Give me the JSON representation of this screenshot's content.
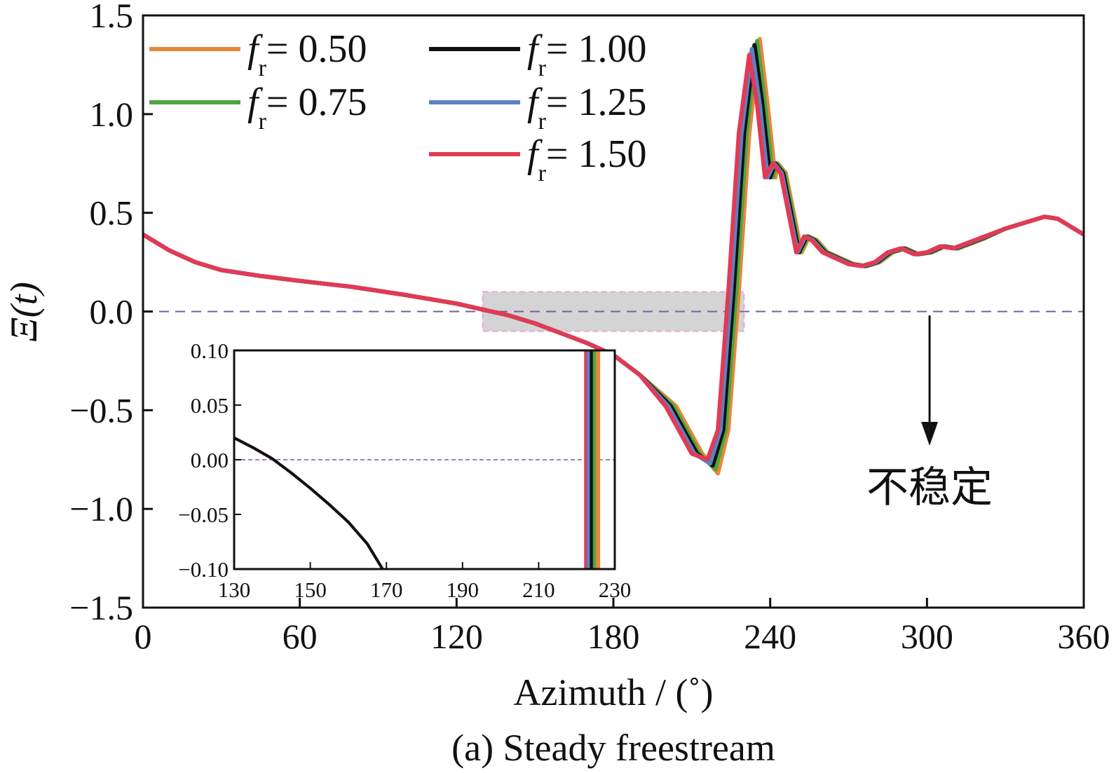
{
  "chart_data": {
    "type": "line",
    "caption": "(a) Steady freestream",
    "xlabel": "Azimuth / (˚)",
    "ylabel": "Ξ(t)",
    "xlim": [
      0,
      360
    ],
    "ylim": [
      -1.5,
      1.5
    ],
    "xticks": [
      "0",
      "60",
      "120",
      "180",
      "240",
      "300",
      "360"
    ],
    "yticks": [
      "1.5",
      "1.0",
      "0.5",
      "0.0",
      "−0.5",
      "−1.0",
      "−1.5"
    ],
    "grid": false,
    "legend_position": "top-left",
    "reference_line": {
      "y": 0.0,
      "style": "dashed",
      "color": "#7a5c9e"
    },
    "annotation": {
      "text": "不稳定",
      "x": 301,
      "arrow_from_y": -0.02,
      "arrow_to_y": -0.68
    },
    "highlight_box": {
      "x": [
        130,
        230
      ],
      "y": [
        -0.1,
        0.1
      ]
    },
    "series": [
      {
        "name": "fr = 0.50",
        "legend_label": {
          "var": "f",
          "sub": "r",
          "value": "= 0.50"
        },
        "color": "#e8873a",
        "shift": 4.0,
        "x": [
          0,
          10,
          20,
          30,
          45,
          60,
          80,
          100,
          120,
          130,
          140,
          150,
          160,
          170,
          180,
          190,
          200,
          210,
          216,
          220,
          224,
          228,
          232,
          235,
          238,
          241,
          244,
          247,
          250,
          253,
          256,
          260,
          265,
          270,
          275,
          280,
          285,
          290,
          295,
          300,
          305,
          310,
          320,
          330,
          340,
          345,
          350,
          360
        ],
        "y": [
          0.39,
          0.31,
          0.25,
          0.21,
          0.18,
          0.155,
          0.125,
          0.085,
          0.04,
          0.01,
          -0.02,
          -0.06,
          -0.11,
          -0.16,
          -0.22,
          -0.32,
          -0.48,
          -0.72,
          -0.82,
          -0.6,
          0.1,
          0.9,
          1.38,
          1.05,
          0.68,
          0.75,
          0.7,
          0.5,
          0.3,
          0.38,
          0.36,
          0.3,
          0.27,
          0.24,
          0.23,
          0.25,
          0.3,
          0.32,
          0.29,
          0.3,
          0.33,
          0.32,
          0.37,
          0.42,
          0.46,
          0.48,
          0.47,
          0.39
        ]
      },
      {
        "name": "fr = 0.75",
        "legend_label": {
          "var": "f",
          "sub": "r",
          "value": "= 0.75"
        },
        "color": "#4ea540",
        "shift": 3.0,
        "x": [
          0,
          10,
          20,
          30,
          45,
          60,
          80,
          100,
          120,
          130,
          140,
          150,
          160,
          170,
          180,
          190,
          200,
          210,
          216,
          220,
          224,
          228,
          232,
          235,
          238,
          241,
          244,
          247,
          250,
          253,
          256,
          260,
          265,
          270,
          275,
          280,
          285,
          290,
          295,
          300,
          305,
          310,
          320,
          330,
          340,
          345,
          350,
          360
        ],
        "y": [
          0.39,
          0.31,
          0.25,
          0.21,
          0.18,
          0.155,
          0.125,
          0.085,
          0.04,
          0.01,
          -0.02,
          -0.06,
          -0.11,
          -0.16,
          -0.22,
          -0.32,
          -0.48,
          -0.72,
          -0.8,
          -0.6,
          0.1,
          0.9,
          1.37,
          1.05,
          0.68,
          0.75,
          0.7,
          0.5,
          0.3,
          0.38,
          0.36,
          0.3,
          0.27,
          0.24,
          0.23,
          0.25,
          0.3,
          0.32,
          0.29,
          0.3,
          0.33,
          0.32,
          0.37,
          0.42,
          0.46,
          0.48,
          0.47,
          0.39
        ]
      },
      {
        "name": "fr = 1.00",
        "legend_label": {
          "var": "f",
          "sub": "r",
          "value": "= 1.00"
        },
        "color": "#111111",
        "shift": 2.0,
        "x": [
          0,
          10,
          20,
          30,
          45,
          60,
          80,
          100,
          120,
          130,
          140,
          150,
          160,
          170,
          180,
          190,
          200,
          210,
          216,
          220,
          224,
          228,
          232,
          235,
          238,
          241,
          244,
          247,
          250,
          253,
          256,
          260,
          265,
          270,
          275,
          280,
          285,
          290,
          295,
          300,
          305,
          310,
          320,
          330,
          340,
          345,
          350,
          360
        ],
        "y": [
          0.39,
          0.31,
          0.25,
          0.21,
          0.18,
          0.155,
          0.125,
          0.085,
          0.04,
          0.01,
          -0.02,
          -0.06,
          -0.11,
          -0.16,
          -0.22,
          -0.32,
          -0.48,
          -0.72,
          -0.78,
          -0.6,
          0.1,
          0.9,
          1.35,
          1.05,
          0.68,
          0.75,
          0.7,
          0.5,
          0.3,
          0.38,
          0.36,
          0.3,
          0.27,
          0.24,
          0.23,
          0.25,
          0.3,
          0.32,
          0.29,
          0.3,
          0.33,
          0.32,
          0.37,
          0.42,
          0.46,
          0.48,
          0.47,
          0.39
        ]
      },
      {
        "name": "fr = 1.25",
        "legend_label": {
          "var": "f",
          "sub": "r",
          "value": "= 1.25"
        },
        "color": "#5b82c4",
        "shift": 1.0,
        "x": [
          0,
          10,
          20,
          30,
          45,
          60,
          80,
          100,
          120,
          130,
          140,
          150,
          160,
          170,
          180,
          190,
          200,
          210,
          216,
          220,
          224,
          228,
          232,
          235,
          238,
          241,
          244,
          247,
          250,
          253,
          256,
          260,
          265,
          270,
          275,
          280,
          285,
          290,
          295,
          300,
          305,
          310,
          320,
          330,
          340,
          345,
          350,
          360
        ],
        "y": [
          0.39,
          0.31,
          0.25,
          0.21,
          0.18,
          0.155,
          0.125,
          0.085,
          0.04,
          0.01,
          -0.02,
          -0.06,
          -0.11,
          -0.16,
          -0.22,
          -0.32,
          -0.48,
          -0.72,
          -0.77,
          -0.6,
          0.1,
          0.9,
          1.33,
          1.05,
          0.68,
          0.75,
          0.7,
          0.5,
          0.3,
          0.38,
          0.36,
          0.3,
          0.27,
          0.24,
          0.23,
          0.25,
          0.3,
          0.32,
          0.29,
          0.3,
          0.33,
          0.32,
          0.37,
          0.42,
          0.46,
          0.48,
          0.47,
          0.39
        ]
      },
      {
        "name": "fr = 1.50",
        "legend_label": {
          "var": "f",
          "sub": "r",
          "value": "= 1.50"
        },
        "color": "#e23a55",
        "shift": 0.0,
        "x": [
          0,
          10,
          20,
          30,
          45,
          60,
          80,
          100,
          120,
          130,
          140,
          150,
          160,
          170,
          180,
          190,
          200,
          210,
          216,
          220,
          224,
          228,
          232,
          235,
          238,
          241,
          244,
          247,
          250,
          253,
          256,
          260,
          265,
          270,
          275,
          280,
          285,
          290,
          295,
          300,
          305,
          310,
          320,
          330,
          340,
          345,
          350,
          360
        ],
        "y": [
          0.39,
          0.31,
          0.25,
          0.21,
          0.18,
          0.155,
          0.125,
          0.085,
          0.04,
          0.01,
          -0.02,
          -0.06,
          -0.11,
          -0.16,
          -0.22,
          -0.32,
          -0.48,
          -0.72,
          -0.75,
          -0.6,
          0.1,
          0.9,
          1.3,
          1.05,
          0.68,
          0.75,
          0.7,
          0.5,
          0.3,
          0.38,
          0.36,
          0.3,
          0.27,
          0.24,
          0.23,
          0.25,
          0.3,
          0.32,
          0.29,
          0.3,
          0.33,
          0.32,
          0.37,
          0.42,
          0.46,
          0.48,
          0.47,
          0.39
        ]
      }
    ],
    "inset": {
      "xlim": [
        130,
        230
      ],
      "ylim": [
        -0.1,
        0.1
      ],
      "xticks": [
        "130",
        "150",
        "170",
        "190",
        "210",
        "230"
      ],
      "yticks": [
        "0.10",
        "0.05",
        "0.00",
        "−0.05",
        "−0.10"
      ],
      "reference_line_y": 0.0,
      "left_branch": {
        "x": [
          130,
          135,
          140,
          145,
          150,
          155,
          160,
          165,
          169
        ],
        "y": [
          0.02,
          0.011,
          0.001,
          -0.012,
          -0.026,
          -0.041,
          -0.057,
          -0.077,
          -0.1
        ]
      },
      "right_branch_x": [
        222.5,
        223.2,
        224.0,
        224.8,
        225.6
      ]
    }
  }
}
